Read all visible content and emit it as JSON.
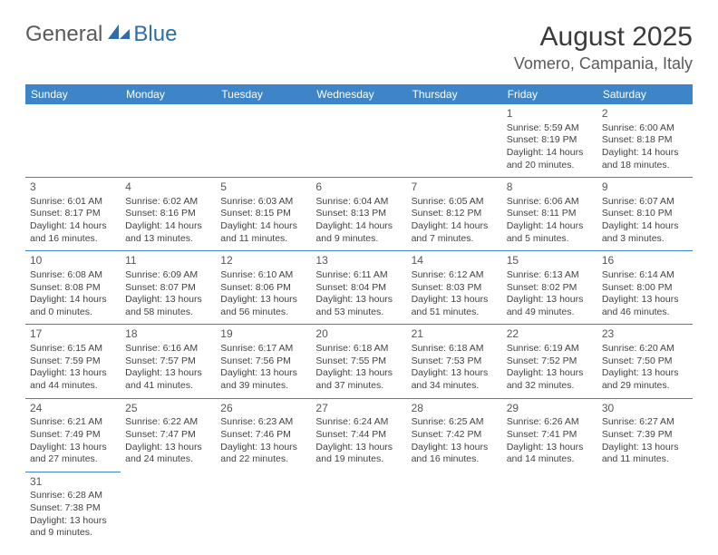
{
  "logo": {
    "part1": "General",
    "part2": "Blue"
  },
  "title": "August 2025",
  "location": "Vomero, Campania, Italy",
  "colors": {
    "header_bg": "#3d85c6",
    "header_fg": "#ffffff",
    "border": "#3d85c6",
    "text": "#424242",
    "title": "#3a3a3a",
    "logo_blue": "#2f6ca8",
    "logo_gray": "#5a5a5a"
  },
  "weekdays": [
    "Sunday",
    "Monday",
    "Tuesday",
    "Wednesday",
    "Thursday",
    "Friday",
    "Saturday"
  ],
  "weeks": [
    [
      null,
      null,
      null,
      null,
      null,
      {
        "n": "1",
        "sr": "Sunrise: 5:59 AM",
        "ss": "Sunset: 8:19 PM",
        "dl": "Daylight: 14 hours and 20 minutes."
      },
      {
        "n": "2",
        "sr": "Sunrise: 6:00 AM",
        "ss": "Sunset: 8:18 PM",
        "dl": "Daylight: 14 hours and 18 minutes."
      }
    ],
    [
      {
        "n": "3",
        "sr": "Sunrise: 6:01 AM",
        "ss": "Sunset: 8:17 PM",
        "dl": "Daylight: 14 hours and 16 minutes."
      },
      {
        "n": "4",
        "sr": "Sunrise: 6:02 AM",
        "ss": "Sunset: 8:16 PM",
        "dl": "Daylight: 14 hours and 13 minutes."
      },
      {
        "n": "5",
        "sr": "Sunrise: 6:03 AM",
        "ss": "Sunset: 8:15 PM",
        "dl": "Daylight: 14 hours and 11 minutes."
      },
      {
        "n": "6",
        "sr": "Sunrise: 6:04 AM",
        "ss": "Sunset: 8:13 PM",
        "dl": "Daylight: 14 hours and 9 minutes."
      },
      {
        "n": "7",
        "sr": "Sunrise: 6:05 AM",
        "ss": "Sunset: 8:12 PM",
        "dl": "Daylight: 14 hours and 7 minutes."
      },
      {
        "n": "8",
        "sr": "Sunrise: 6:06 AM",
        "ss": "Sunset: 8:11 PM",
        "dl": "Daylight: 14 hours and 5 minutes."
      },
      {
        "n": "9",
        "sr": "Sunrise: 6:07 AM",
        "ss": "Sunset: 8:10 PM",
        "dl": "Daylight: 14 hours and 3 minutes."
      }
    ],
    [
      {
        "n": "10",
        "sr": "Sunrise: 6:08 AM",
        "ss": "Sunset: 8:08 PM",
        "dl": "Daylight: 14 hours and 0 minutes."
      },
      {
        "n": "11",
        "sr": "Sunrise: 6:09 AM",
        "ss": "Sunset: 8:07 PM",
        "dl": "Daylight: 13 hours and 58 minutes."
      },
      {
        "n": "12",
        "sr": "Sunrise: 6:10 AM",
        "ss": "Sunset: 8:06 PM",
        "dl": "Daylight: 13 hours and 56 minutes."
      },
      {
        "n": "13",
        "sr": "Sunrise: 6:11 AM",
        "ss": "Sunset: 8:04 PM",
        "dl": "Daylight: 13 hours and 53 minutes."
      },
      {
        "n": "14",
        "sr": "Sunrise: 6:12 AM",
        "ss": "Sunset: 8:03 PM",
        "dl": "Daylight: 13 hours and 51 minutes."
      },
      {
        "n": "15",
        "sr": "Sunrise: 6:13 AM",
        "ss": "Sunset: 8:02 PM",
        "dl": "Daylight: 13 hours and 49 minutes."
      },
      {
        "n": "16",
        "sr": "Sunrise: 6:14 AM",
        "ss": "Sunset: 8:00 PM",
        "dl": "Daylight: 13 hours and 46 minutes."
      }
    ],
    [
      {
        "n": "17",
        "sr": "Sunrise: 6:15 AM",
        "ss": "Sunset: 7:59 PM",
        "dl": "Daylight: 13 hours and 44 minutes."
      },
      {
        "n": "18",
        "sr": "Sunrise: 6:16 AM",
        "ss": "Sunset: 7:57 PM",
        "dl": "Daylight: 13 hours and 41 minutes."
      },
      {
        "n": "19",
        "sr": "Sunrise: 6:17 AM",
        "ss": "Sunset: 7:56 PM",
        "dl": "Daylight: 13 hours and 39 minutes."
      },
      {
        "n": "20",
        "sr": "Sunrise: 6:18 AM",
        "ss": "Sunset: 7:55 PM",
        "dl": "Daylight: 13 hours and 37 minutes."
      },
      {
        "n": "21",
        "sr": "Sunrise: 6:18 AM",
        "ss": "Sunset: 7:53 PM",
        "dl": "Daylight: 13 hours and 34 minutes."
      },
      {
        "n": "22",
        "sr": "Sunrise: 6:19 AM",
        "ss": "Sunset: 7:52 PM",
        "dl": "Daylight: 13 hours and 32 minutes."
      },
      {
        "n": "23",
        "sr": "Sunrise: 6:20 AM",
        "ss": "Sunset: 7:50 PM",
        "dl": "Daylight: 13 hours and 29 minutes."
      }
    ],
    [
      {
        "n": "24",
        "sr": "Sunrise: 6:21 AM",
        "ss": "Sunset: 7:49 PM",
        "dl": "Daylight: 13 hours and 27 minutes."
      },
      {
        "n": "25",
        "sr": "Sunrise: 6:22 AM",
        "ss": "Sunset: 7:47 PM",
        "dl": "Daylight: 13 hours and 24 minutes."
      },
      {
        "n": "26",
        "sr": "Sunrise: 6:23 AM",
        "ss": "Sunset: 7:46 PM",
        "dl": "Daylight: 13 hours and 22 minutes."
      },
      {
        "n": "27",
        "sr": "Sunrise: 6:24 AM",
        "ss": "Sunset: 7:44 PM",
        "dl": "Daylight: 13 hours and 19 minutes."
      },
      {
        "n": "28",
        "sr": "Sunrise: 6:25 AM",
        "ss": "Sunset: 7:42 PM",
        "dl": "Daylight: 13 hours and 16 minutes."
      },
      {
        "n": "29",
        "sr": "Sunrise: 6:26 AM",
        "ss": "Sunset: 7:41 PM",
        "dl": "Daylight: 13 hours and 14 minutes."
      },
      {
        "n": "30",
        "sr": "Sunrise: 6:27 AM",
        "ss": "Sunset: 7:39 PM",
        "dl": "Daylight: 13 hours and 11 minutes."
      }
    ],
    [
      {
        "n": "31",
        "sr": "Sunrise: 6:28 AM",
        "ss": "Sunset: 7:38 PM",
        "dl": "Daylight: 13 hours and 9 minutes."
      },
      null,
      null,
      null,
      null,
      null,
      null
    ]
  ]
}
